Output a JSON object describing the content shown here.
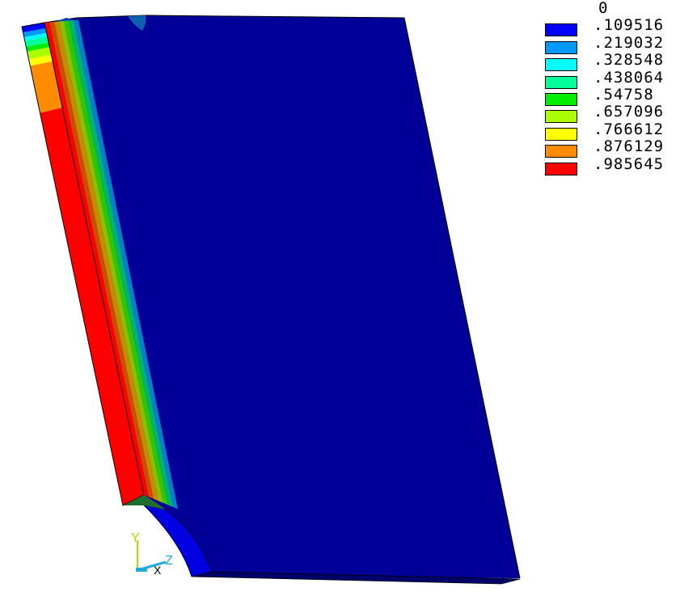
{
  "legend": {
    "levels": [
      {
        "label": "0",
        "color": null
      },
      {
        "label": ".109516",
        "color": "#0000FF"
      },
      {
        "label": ".219032",
        "color": "#0099FF"
      },
      {
        "label": ".328548",
        "color": "#00FFFF"
      },
      {
        "label": ".438064",
        "color": "#00FF99"
      },
      {
        "label": ".54758",
        "color": "#00EE00"
      },
      {
        "label": ".657096",
        "color": "#AAFF00"
      },
      {
        "label": ".766612",
        "color": "#FFFF00"
      },
      {
        "label": ".876129",
        "color": "#FF8C00"
      },
      {
        "label": ".985645",
        "color": "#FF0000"
      }
    ]
  },
  "triad": {
    "y_label": "Y",
    "z_label": "Z",
    "x_label": "X"
  },
  "colors": {
    "plate_face": "#000098",
    "plate_edge_dark": "#00006A",
    "hole_face": "#0000E0",
    "band_colors": [
      "#FF0000",
      "#D24A00",
      "#C88A00",
      "#8FBE00",
      "#2AC800",
      "#00B46E",
      "#0080C8"
    ],
    "triad_y": "#AADD00",
    "triad_z": "#22AADD",
    "triad_x": "#000000"
  }
}
